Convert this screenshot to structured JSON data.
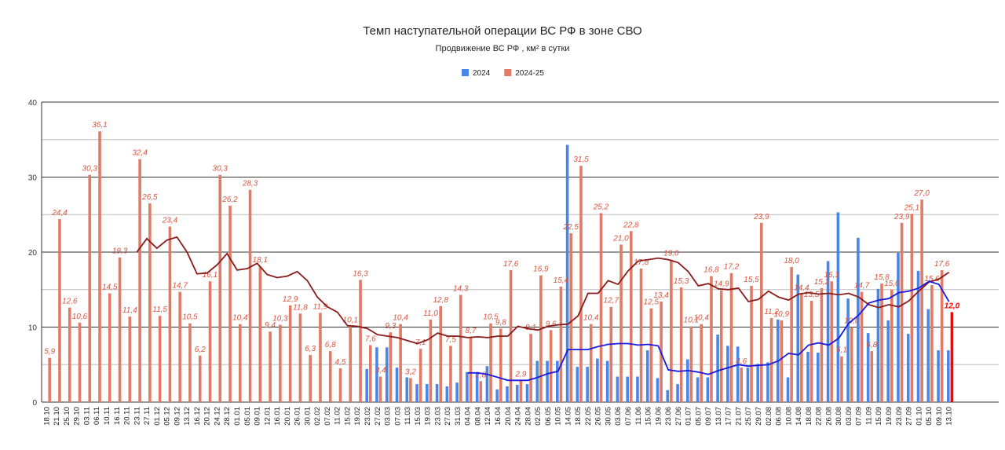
{
  "chart_data": {
    "type": "bar",
    "title": "Темп наступательной операции ВС РФ в зоне СВО",
    "subtitle": "Продвижение ВС РФ , км² в сутки",
    "categories": [
      "18.10",
      "21.10",
      "25.10",
      "29.10",
      "03.11",
      "06.11",
      "10.11",
      "16.11",
      "20.11",
      "23.11",
      "27.11",
      "01.12",
      "05.12",
      "09.12",
      "13.12",
      "16.12",
      "20.12",
      "24.12",
      "28.12",
      "01.01",
      "05.01",
      "09.01",
      "12.01",
      "16.01",
      "20.01",
      "26.01",
      "30.01",
      "02.02",
      "07.02",
      "11.02",
      "15.02",
      "19.02",
      "23.02",
      "27.02",
      "03.03",
      "07.03",
      "11.03",
      "15.03",
      "19.03",
      "23.03",
      "27.03",
      "31.03",
      "04.04",
      "08.04",
      "12.04",
      "16.04",
      "20.04",
      "24.04",
      "28.04",
      "02.05",
      "06.05",
      "10.05",
      "14.05",
      "18.05",
      "22.05",
      "26.05",
      "30.05",
      "03.06",
      "07.06",
      "11.06",
      "15.06",
      "19.06",
      "23.06",
      "27.06",
      "01.07",
      "05.07",
      "09.07",
      "13.07",
      "17.07",
      "21.07",
      "25.07",
      "29.07",
      "02.08",
      "06.08",
      "10.08",
      "14.08",
      "18.08",
      "22.08",
      "26.08",
      "30.08",
      "03.09",
      "07.09",
      "11.09",
      "15.09",
      "19.09",
      "23.09",
      "27.09",
      "01.10",
      "05.10",
      "09.10",
      "13.10"
    ],
    "series": [
      {
        "name": "2024",
        "type": "bar",
        "color": "#4a86e8",
        "values": [
          null,
          null,
          null,
          null,
          null,
          null,
          null,
          null,
          null,
          null,
          null,
          null,
          null,
          null,
          null,
          null,
          null,
          null,
          null,
          null,
          null,
          null,
          null,
          null,
          null,
          null,
          null,
          null,
          null,
          null,
          null,
          null,
          4.4,
          7.3,
          7.3,
          4.6,
          3.3,
          2.4,
          2.4,
          2.4,
          2.1,
          2.6,
          4.0,
          3.9,
          4.8,
          1.7,
          2.1,
          2.3,
          2.4,
          5.5,
          5.5,
          5.5,
          34.3,
          4.7,
          4.7,
          5.8,
          5.5,
          3.4,
          3.4,
          3.4,
          6.9,
          3.2,
          1.6,
          2.4,
          5.7,
          3.3,
          3.3,
          9.0,
          7.5,
          7.4,
          4.6,
          5.1,
          5.3,
          11.0,
          3.3,
          17.0,
          6.7,
          6.6,
          18.8,
          25.3,
          13.8,
          21.9,
          9.2,
          15.1,
          10.9,
          19.9,
          9.1,
          17.5,
          12.4,
          6.9,
          6.9
        ]
      },
      {
        "name": "2024-25",
        "type": "bar",
        "color": "#e07b68",
        "label_color": "#d9553f",
        "highlight": {
          "index": 90,
          "color": "#ff0000"
        },
        "values": [
          5.9,
          24.4,
          12.6,
          10.6,
          30.3,
          36.1,
          14.5,
          19.3,
          11.4,
          32.4,
          26.5,
          11.5,
          23.4,
          14.7,
          10.5,
          6.2,
          16.1,
          30.3,
          26.2,
          10.4,
          28.3,
          18.1,
          9.4,
          10.3,
          12.9,
          11.8,
          6.3,
          11.9,
          6.8,
          4.5,
          10.1,
          16.3,
          7.6,
          3.4,
          9.3,
          10.4,
          3.2,
          7.1,
          11.0,
          12.8,
          7.5,
          14.3,
          8.7,
          2.8,
          10.5,
          9.8,
          17.6,
          2.9,
          9.1,
          16.9,
          9.6,
          15.4,
          22.5,
          31.5,
          10.4,
          25.2,
          12.7,
          21.0,
          22.8,
          17.8,
          12.5,
          13.4,
          19.0,
          15.3,
          10.1,
          10.4,
          16.8,
          14.9,
          17.2,
          4.6,
          15.5,
          23.9,
          11.2,
          10.9,
          18.0,
          14.4,
          13.5,
          15.2,
          16.1,
          6.1,
          10.0,
          14.7,
          6.8,
          15.8,
          15.0,
          23.9,
          25.1,
          27.0,
          15.6,
          17.6,
          12.0
        ],
        "value_labels": [
          "5,9",
          "24,4",
          "12,6",
          "10,6",
          "30,3",
          "36,1",
          "14,5",
          "19,3",
          "11,4",
          "32,4",
          "26,5",
          "11,5",
          "23,4",
          "14,7",
          "10,5",
          "6,2",
          "16,1",
          "30,3",
          "26,2",
          "10,4",
          "28,3",
          "18,1",
          "9,4",
          "10,3",
          "12,9",
          "11,8",
          "6,3",
          "11,9",
          "6,8",
          "4,5",
          "10,1",
          "16,3",
          "7,6",
          "3,4",
          "9,3",
          "10,4",
          "3,2",
          "7,1",
          "11,0",
          "12,8",
          "7,5",
          "14,3",
          "8,7",
          "2,8",
          "10,5",
          "9,8",
          "17,6",
          "2,9",
          "9,1",
          "16,9",
          "9,6",
          "15,4",
          "22,5",
          "31,5",
          "10,4",
          "25,2",
          "12,7",
          "21,0",
          "22,8",
          "17,8",
          "12,5",
          "13,4",
          "19,0",
          "15,3",
          "10,1",
          "10,4",
          "16,8",
          "14,9",
          "17,2",
          "4,6",
          "15,5",
          "23,9",
          "11,2",
          "10,9",
          "18,0",
          "14,4",
          "13,5",
          "15,2",
          "16,1",
          "6,1",
          "10,0",
          "14,7",
          "6,8",
          "15,8",
          "15,0",
          "23,9",
          "25,1",
          "27,0",
          "15,6",
          "17,6",
          "12,0"
        ]
      },
      {
        "type": "line",
        "color": "#8b1a1a",
        "values": [
          null,
          null,
          null,
          null,
          null,
          null,
          null,
          null,
          null,
          20.0,
          21.8,
          20.5,
          21.6,
          22.0,
          20.0,
          17.1,
          17.2,
          18.3,
          19.8,
          17.6,
          17.8,
          18.5,
          17.0,
          16.6,
          16.8,
          17.4,
          16.2,
          14.0,
          12.7,
          12.0,
          10.2,
          10.1,
          9.8,
          9.0,
          8.8,
          8.6,
          8.2,
          7.8,
          8.3,
          9.2,
          8.8,
          8.8,
          8.6,
          8.7,
          8.6,
          8.8,
          8.8,
          10.1,
          9.8,
          9.6,
          10.1,
          10.3,
          10.4,
          11.5,
          14.5,
          14.5,
          16.2,
          15.7,
          17.5,
          18.8,
          19.0,
          19.2,
          19.0,
          18.6,
          17.4,
          15.5,
          15.8,
          15.1,
          15.0,
          15.2,
          13.4,
          13.7,
          14.8,
          14.0,
          13.6,
          14.4,
          14.6,
          14.4,
          14.5,
          14.3,
          14.5,
          14.0,
          13.0,
          12.6,
          13.0,
          12.7,
          13.5,
          14.8,
          16.0,
          16.4,
          17.3
        ]
      },
      {
        "type": "line",
        "color": "#1a1ae0",
        "values": [
          null,
          null,
          null,
          null,
          null,
          null,
          null,
          null,
          null,
          null,
          null,
          null,
          null,
          null,
          null,
          null,
          null,
          null,
          null,
          null,
          null,
          null,
          null,
          null,
          null,
          null,
          null,
          null,
          null,
          null,
          null,
          null,
          null,
          null,
          null,
          null,
          null,
          null,
          null,
          null,
          null,
          null,
          3.9,
          3.9,
          3.7,
          3.3,
          2.9,
          2.9,
          2.9,
          3.3,
          3.8,
          4.1,
          7.0,
          7.0,
          7.0,
          7.4,
          7.7,
          7.8,
          7.8,
          7.6,
          7.7,
          7.5,
          4.3,
          4.1,
          4.2,
          4.0,
          3.7,
          4.2,
          4.6,
          5.0,
          4.8,
          4.9,
          5.0,
          5.5,
          6.5,
          6.3,
          7.6,
          7.9,
          7.6,
          8.5,
          10.5,
          11.6,
          13.2,
          13.6,
          13.8,
          14.6,
          14.8,
          15.2,
          16.1,
          15.7,
          13.4
        ]
      }
    ],
    "ylim": [
      0,
      40
    ],
    "yticks": [
      0,
      10,
      20,
      30,
      40
    ],
    "minor_yticks": [
      5,
      15,
      25,
      35
    ],
    "grid": true,
    "legend": "top"
  }
}
